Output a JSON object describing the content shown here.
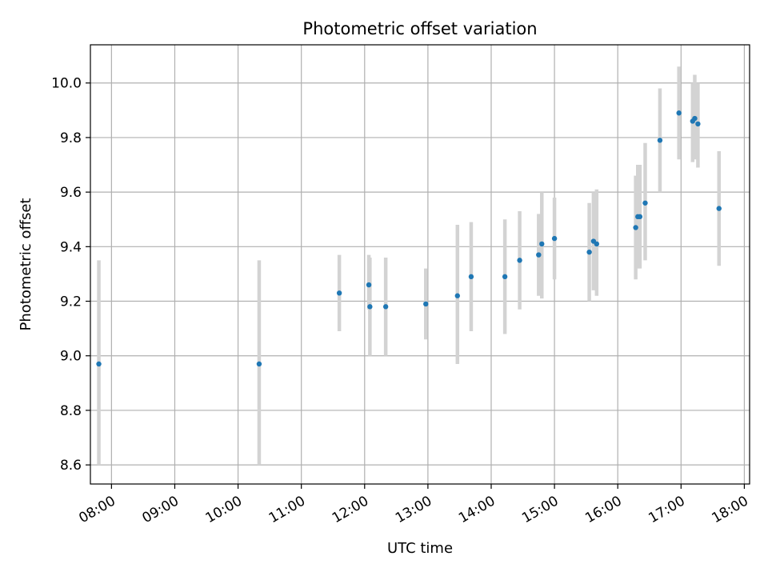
{
  "chart_data": {
    "type": "scatter",
    "title": "Photometric offset variation",
    "xlabel": "UTC time",
    "ylabel": "Photometric offset",
    "grid": true,
    "xlim": [
      "07:40",
      "18:05"
    ],
    "ylim": [
      8.53,
      10.14
    ],
    "x_ticks": [
      "08:00",
      "09:00",
      "10:00",
      "11:00",
      "12:00",
      "13:00",
      "14:00",
      "15:00",
      "16:00",
      "17:00",
      "18:00"
    ],
    "y_ticks": [
      "8.6",
      "8.8",
      "9.0",
      "9.2",
      "9.4",
      "9.6",
      "9.8",
      "10.0"
    ],
    "marker_color": "#1f77b4",
    "errorbar_color": "#d3d3d3",
    "series": [
      {
        "points": [
          {
            "x": "07:48",
            "y": 8.97,
            "lo": 8.6,
            "hi": 9.35
          },
          {
            "x": "10:20",
            "y": 8.97,
            "lo": 8.6,
            "hi": 9.35
          },
          {
            "x": "11:36",
            "y": 9.23,
            "lo": 9.09,
            "hi": 9.37
          },
          {
            "x": "12:04",
            "y": 9.26,
            "lo": 9.17,
            "hi": 9.37
          },
          {
            "x": "12:05",
            "y": 9.18,
            "lo": 9.0,
            "hi": 9.36
          },
          {
            "x": "12:20",
            "y": 9.18,
            "lo": 9.0,
            "hi": 9.36
          },
          {
            "x": "12:58",
            "y": 9.19,
            "lo": 9.06,
            "hi": 9.32
          },
          {
            "x": "13:28",
            "y": 9.22,
            "lo": 8.97,
            "hi": 9.48
          },
          {
            "x": "13:41",
            "y": 9.29,
            "lo": 9.09,
            "hi": 9.49
          },
          {
            "x": "14:13",
            "y": 9.29,
            "lo": 9.08,
            "hi": 9.5
          },
          {
            "x": "14:27",
            "y": 9.35,
            "lo": 9.17,
            "hi": 9.53
          },
          {
            "x": "14:45",
            "y": 9.37,
            "lo": 9.22,
            "hi": 9.52
          },
          {
            "x": "14:48",
            "y": 9.41,
            "lo": 9.21,
            "hi": 9.6
          },
          {
            "x": "15:00",
            "y": 9.43,
            "lo": 9.28,
            "hi": 9.58
          },
          {
            "x": "15:33",
            "y": 9.38,
            "lo": 9.2,
            "hi": 9.56
          },
          {
            "x": "15:37",
            "y": 9.42,
            "lo": 9.24,
            "hi": 9.6
          },
          {
            "x": "15:40",
            "y": 9.41,
            "lo": 9.22,
            "hi": 9.61
          },
          {
            "x": "16:17",
            "y": 9.47,
            "lo": 9.28,
            "hi": 9.66
          },
          {
            "x": "16:19",
            "y": 9.51,
            "lo": 9.32,
            "hi": 9.7
          },
          {
            "x": "16:21",
            "y": 9.51,
            "lo": 9.32,
            "hi": 9.7
          },
          {
            "x": "16:26",
            "y": 9.56,
            "lo": 9.35,
            "hi": 9.78
          },
          {
            "x": "16:40",
            "y": 9.79,
            "lo": 9.6,
            "hi": 9.98
          },
          {
            "x": "16:58",
            "y": 9.89,
            "lo": 9.72,
            "hi": 10.06
          },
          {
            "x": "17:11",
            "y": 9.86,
            "lo": 9.71,
            "hi": 10.0
          },
          {
            "x": "17:13",
            "y": 9.87,
            "lo": 9.72,
            "hi": 10.03
          },
          {
            "x": "17:16",
            "y": 9.85,
            "lo": 9.69,
            "hi": 10.0
          },
          {
            "x": "17:36",
            "y": 9.54,
            "lo": 9.33,
            "hi": 9.75
          }
        ]
      }
    ]
  }
}
